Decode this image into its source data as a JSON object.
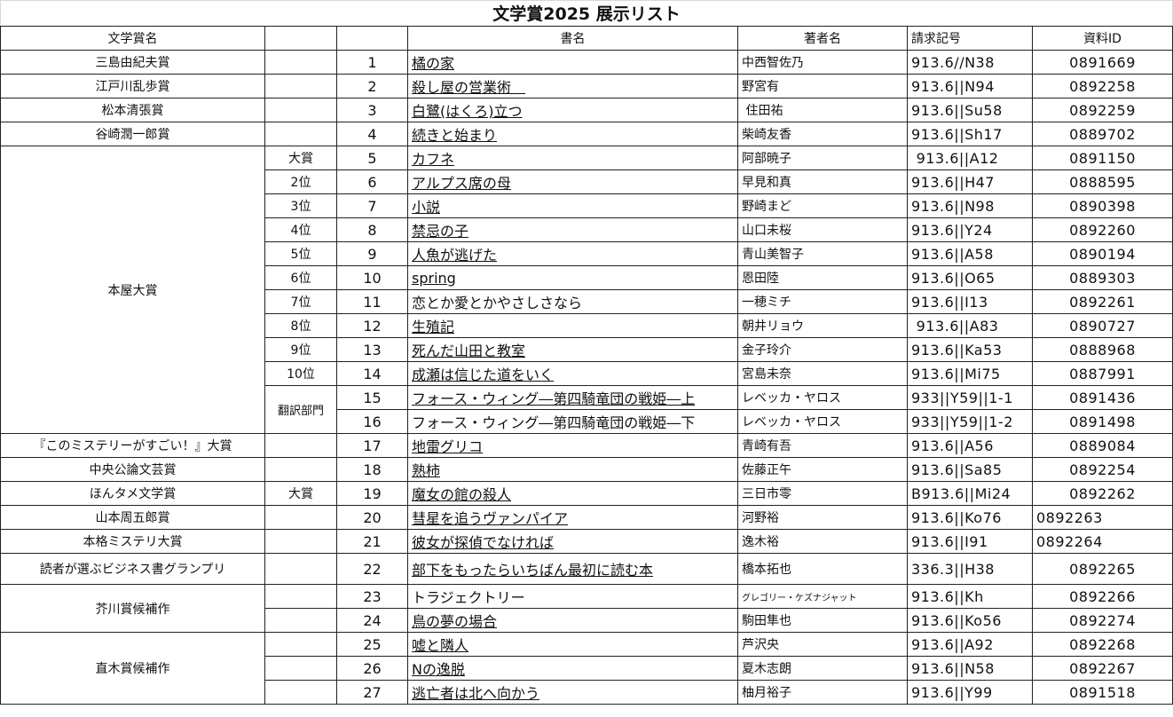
{
  "title": "文学賞2025  展示リスト",
  "headers": {
    "award": "文学賞名",
    "sub": "",
    "no": "",
    "book": "書名",
    "author": "著者名",
    "call": "請求記号",
    "id": "資料ID"
  },
  "rows": [
    {
      "award": "三島由紀夫賞",
      "sub": "",
      "no": "1",
      "book": "橘の家",
      "link": true,
      "author": "中西智佐乃",
      "call": "913.6//N38",
      "id": "0891669"
    },
    {
      "award": "江戸川乱歩賞",
      "sub": "",
      "no": "2",
      "book": "殺し屋の営業術　",
      "link": true,
      "author": "野宮有",
      "call": "913.6||N94",
      "id": "0892258"
    },
    {
      "award": "松本清張賞",
      "sub": "",
      "no": "3",
      "book": "白鷺(はくろ)立つ",
      "link": true,
      "author": " 住田祐",
      "call": "913.6||Su58",
      "id": "0892259"
    },
    {
      "award": "谷崎潤一郎賞",
      "sub": "",
      "no": "4",
      "book": "続きと始まり",
      "link": true,
      "author": "柴崎友香",
      "call": "913.6||Sh17",
      "id": "0889702"
    },
    {
      "award": "本屋大賞",
      "sub": "大賞",
      "no": "5",
      "book": "カフネ",
      "link": true,
      "author": "阿部暁子",
      "call": " 913.6||A12",
      "id": "0891150"
    },
    {
      "award": "",
      "sub": "2位",
      "no": "6",
      "book": "アルプス席の母",
      "link": true,
      "author": "早見和真",
      "call": "913.6||H47",
      "id": "0888595"
    },
    {
      "award": "",
      "sub": "3位",
      "no": "7",
      "book": "小説",
      "link": true,
      "author": "野崎まど",
      "call": "913.6||N98",
      "id": "0890398"
    },
    {
      "award": "",
      "sub": "4位",
      "no": "8",
      "book": "禁忌の子",
      "link": true,
      "author": "山口未桜",
      "call": "913.6||Y24",
      "id": "0892260"
    },
    {
      "award": "",
      "sub": "5位",
      "no": "9",
      "book": "人魚が逃げた",
      "link": true,
      "author": "青山美智子",
      "call": "913.6||A58",
      "id": "0890194"
    },
    {
      "award": "",
      "sub": "6位",
      "no": "10",
      "book": "spring",
      "link": true,
      "author": "恩田陸",
      "call": "913.6||O65",
      "id": "0889303"
    },
    {
      "award": "",
      "sub": "7位",
      "no": "11",
      "book": "恋とか愛とかやさしさなら",
      "link": false,
      "author": "一穂ミチ",
      "call": "913.6||I13",
      "id": "0892261"
    },
    {
      "award": "",
      "sub": "8位",
      "no": "12",
      "book": "生殖記",
      "link": true,
      "author": "朝井リョウ",
      "call": " 913.6||A83",
      "id": "0890727"
    },
    {
      "award": "",
      "sub": "9位",
      "no": "13",
      "book": "死んだ山田と教室",
      "link": true,
      "author": "金子玲介",
      "call": "913.6||Ka53",
      "id": "0888968"
    },
    {
      "award": "",
      "sub": "10位",
      "no": "14",
      "book": "成瀬は信じた道をいく",
      "link": true,
      "author": "宮島未奈",
      "call": "913.6||Mi75",
      "id": "0887991"
    },
    {
      "award": "",
      "sub": "翻訳部門",
      "no": "15",
      "book": "フォース・ウィング―第四騎竜団の戦姫―上",
      "link": true,
      "author": "レベッカ・ヤロス",
      "call": "933||Y59||1-1",
      "id": "0891436"
    },
    {
      "award": "",
      "sub": "",
      "no": "16",
      "book": "フォース・ウィング―第四騎竜団の戦姫―下",
      "link": false,
      "author": "レベッカ・ヤロス",
      "call": "933||Y59||1-2",
      "id": "0891498"
    },
    {
      "award": "『このミステリーがすごい！』大賞",
      "sub": "",
      "no": "17",
      "book": "地雷グリコ",
      "link": true,
      "author": "青崎有吾",
      "call": "913.6||A56",
      "id": "0889084"
    },
    {
      "award": "中央公論文芸賞",
      "sub": "",
      "no": "18",
      "book": "熟柿",
      "link": true,
      "author": "佐藤正午",
      "call": "913.6||Sa85",
      "id": "0892254"
    },
    {
      "award": "ほんタメ文学賞",
      "sub": "大賞",
      "no": "19",
      "book": "魔女の館の殺人",
      "link": true,
      "author": "三日市零",
      "call": "B913.6||Mi24",
      "id": "0892262"
    },
    {
      "award": "山本周五郎賞",
      "sub": "",
      "no": "20",
      "book": "彗星を追うヴァンパイア",
      "link": true,
      "author": "河野裕",
      "call": "913.6||Ko76",
      "id": "0892263"
    },
    {
      "award": "本格ミステリ大賞",
      "sub": "",
      "no": "21",
      "book": "彼女が探偵でなければ",
      "link": true,
      "author": "逸木裕",
      "call": "913.6||I91",
      "id": "0892264"
    },
    {
      "award": "読者が選ぶビジネス書グランプリ",
      "sub": "",
      "no": "22",
      "book": "部下をもったらいちばん最初に読む本",
      "link": true,
      "author": "橋本拓也",
      "call": "336.3||H38",
      "id": "0892265"
    },
    {
      "award": "芥川賞候補作",
      "sub": "",
      "no": "23",
      "book": "トラジェクトリー",
      "link": false,
      "author": "グレゴリー・ケズナジャット",
      "call": "913.6||Kh",
      "id": "0892266"
    },
    {
      "award": "",
      "sub": "",
      "no": "24",
      "book": "鳥の夢の場合",
      "link": true,
      "author": "駒田隼也",
      "call": "913.6||Ko56",
      "id": "0892274"
    },
    {
      "award": "直木賞候補作",
      "sub": "",
      "no": "25",
      "book": "嘘と隣人",
      "link": true,
      "author": "芦沢央",
      "call": "913.6||A92",
      "id": "0892268"
    },
    {
      "award": "",
      "sub": "",
      "no": "26",
      "book": "Nの逸脱",
      "link": true,
      "author": "夏木志朗",
      "call": "913.6||N58",
      "id": "0892267"
    },
    {
      "award": "",
      "sub": "",
      "no": "27",
      "book": "逃亡者は北へ向かう",
      "link": true,
      "author": "柚月裕子",
      "call": "913.6||Y99",
      "id": "0891518"
    }
  ]
}
